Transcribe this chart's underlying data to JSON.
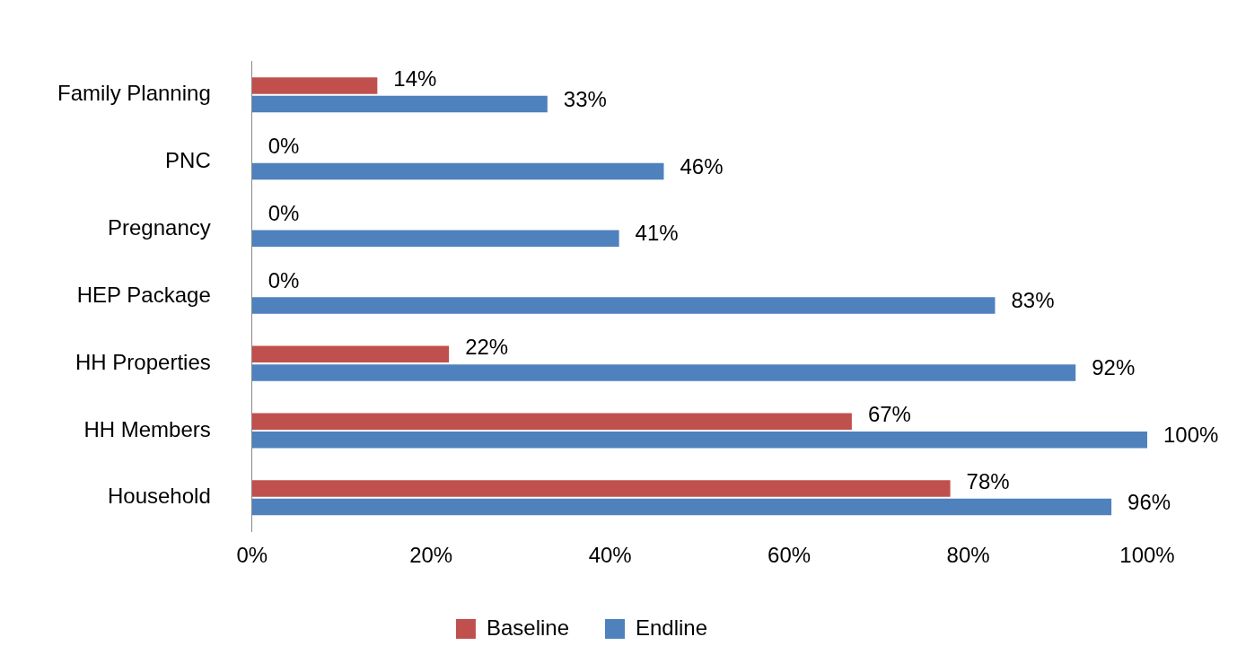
{
  "chart_data": {
    "type": "bar",
    "orientation": "horizontal",
    "categories": [
      "Family Planning",
      "PNC",
      "Pregnancy",
      "HEP Package",
      "HH Properties",
      "HH Members",
      "Household"
    ],
    "series": [
      {
        "name": "Baseline",
        "color": "#c0504d",
        "values": [
          14,
          0,
          0,
          0,
          22,
          67,
          78
        ],
        "value_labels": [
          "14%",
          "0%",
          "0%",
          "0%",
          "22%",
          "67%",
          "78%"
        ]
      },
      {
        "name": "Endline",
        "color": "#4f81bd",
        "values": [
          33,
          46,
          41,
          83,
          92,
          100,
          96
        ],
        "value_labels": [
          "33%",
          "46%",
          "41%",
          "83%",
          "92%",
          "100%",
          "96%"
        ]
      }
    ],
    "xlim": [
      0,
      100
    ],
    "xticks": [
      {
        "value": 0,
        "label": "0%"
      },
      {
        "value": 20,
        "label": "20%"
      },
      {
        "value": 40,
        "label": "40%"
      },
      {
        "value": 60,
        "label": "60%"
      },
      {
        "value": 80,
        "label": "80%"
      },
      {
        "value": 100,
        "label": "100%"
      }
    ],
    "grid": false,
    "legend": "bottom"
  }
}
